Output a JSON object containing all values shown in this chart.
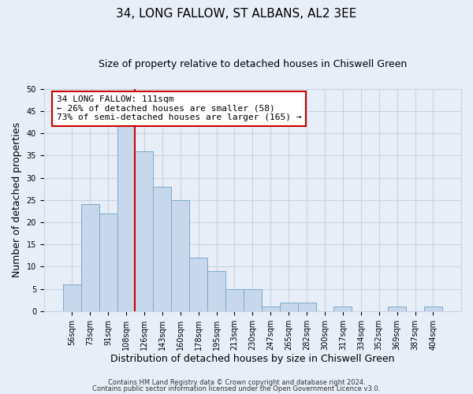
{
  "title": "34, LONG FALLOW, ST ALBANS, AL2 3EE",
  "subtitle": "Size of property relative to detached houses in Chiswell Green",
  "xlabel": "Distribution of detached houses by size in Chiswell Green",
  "ylabel": "Number of detached properties",
  "bar_labels_used": [
    "56sqm",
    "73sqm",
    "91sqm",
    "108sqm",
    "126sqm",
    "143sqm",
    "160sqm",
    "178sqm",
    "195sqm",
    "213sqm",
    "230sqm",
    "247sqm",
    "265sqm",
    "282sqm",
    "300sqm",
    "317sqm",
    "334sqm",
    "352sqm",
    "369sqm",
    "387sqm",
    "404sqm"
  ],
  "bar_values_full": [
    6,
    24,
    22,
    42,
    36,
    28,
    25,
    12,
    9,
    5,
    5,
    1,
    2,
    2,
    0,
    1,
    0,
    0,
    1,
    0,
    1
  ],
  "bar_color": "#c8d8ec",
  "bar_edge_color": "#7aaac8",
  "vline_x": 3.5,
  "vline_color": "#cc0000",
  "annotation_line1": "34 LONG FALLOW: 111sqm",
  "annotation_line2": "← 26% of detached houses are smaller (58)",
  "annotation_line3": "73% of semi-detached houses are larger (165) →",
  "annotation_box_color": "#ffffff",
  "annotation_box_edge": "#cc0000",
  "ylim": [
    0,
    50
  ],
  "yticks": [
    0,
    5,
    10,
    15,
    20,
    25,
    30,
    35,
    40,
    45,
    50
  ],
  "grid_color": "#c8d4e4",
  "footer_line1": "Contains HM Land Registry data © Crown copyright and database right 2024.",
  "footer_line2": "Contains public sector information licensed under the Open Government Licence v3.0.",
  "bg_color": "#e8eef8",
  "plot_bg_color": "#e8eef8",
  "title_fontsize": 11,
  "subtitle_fontsize": 9,
  "axis_label_fontsize": 9,
  "tick_fontsize": 7,
  "annotation_fontsize": 8,
  "footer_fontsize": 6
}
